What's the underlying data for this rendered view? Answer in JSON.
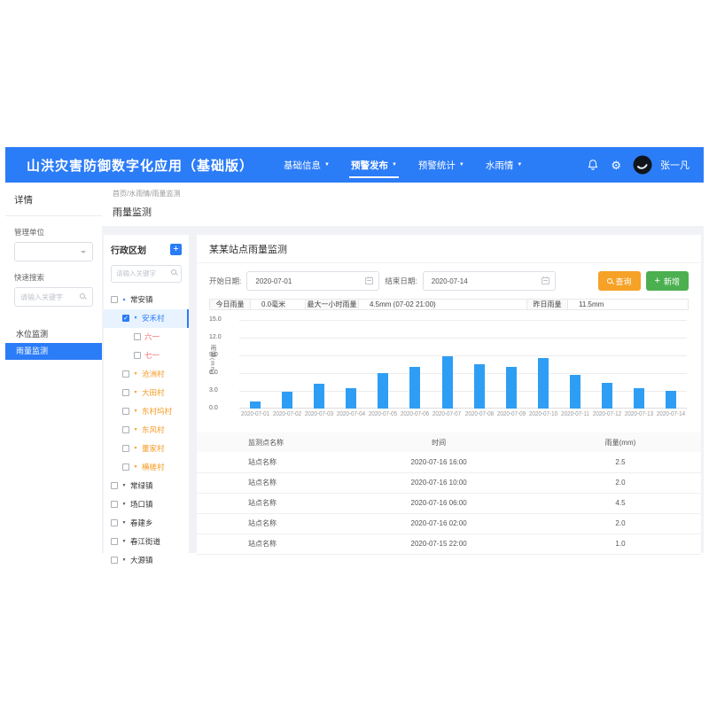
{
  "navbar": {
    "title": "山洪灾害防御数字化应用（基础版）",
    "menus": [
      {
        "label": "基础信息",
        "active": false
      },
      {
        "label": "预警发布",
        "active": true
      },
      {
        "label": "预警统计",
        "active": false
      },
      {
        "label": "水雨情",
        "active": false
      }
    ],
    "user_name": "张一凡"
  },
  "sidebar": {
    "heading": "详情",
    "org_label": "管理单位",
    "quick_search_label": "快速搜索",
    "search_placeholder": "请输入关键字",
    "items": [
      {
        "label": "水位监测",
        "active": false
      },
      {
        "label": "雨量监测",
        "active": true
      }
    ]
  },
  "page": {
    "breadcrumb": "首页/水雨情/雨量监测",
    "title": "雨量监测"
  },
  "tree_panel": {
    "title": "行政区划",
    "add_button": "+",
    "search_placeholder": "请输入关键字",
    "nodes": [
      {
        "label": "常安镇",
        "level": 0,
        "checked": false,
        "arrow": "up",
        "color": "dark",
        "selected": false
      },
      {
        "label": "安禾村",
        "level": 1,
        "checked": true,
        "arrow": "down",
        "color": "blue",
        "selected": true
      },
      {
        "label": "六一",
        "level": 2,
        "checked": false,
        "arrow": "none",
        "color": "red",
        "selected": false
      },
      {
        "label": "七一",
        "level": 2,
        "checked": false,
        "arrow": "none",
        "color": "red",
        "selected": false
      },
      {
        "label": "沧洲村",
        "level": 1,
        "checked": false,
        "arrow": "down",
        "color": "orange",
        "selected": false
      },
      {
        "label": "大田村",
        "level": 1,
        "checked": false,
        "arrow": "down",
        "color": "orange",
        "selected": false
      },
      {
        "label": "东村坞村",
        "level": 1,
        "checked": false,
        "arrow": "down",
        "color": "orange",
        "selected": false
      },
      {
        "label": "东风村",
        "level": 1,
        "checked": false,
        "arrow": "down",
        "color": "orange",
        "selected": false
      },
      {
        "label": "董家村",
        "level": 1,
        "checked": false,
        "arrow": "down",
        "color": "orange",
        "selected": false
      },
      {
        "label": "横槎村",
        "level": 1,
        "checked": false,
        "arrow": "down",
        "color": "orange",
        "selected": false
      },
      {
        "label": "常绿镇",
        "level": 0,
        "checked": false,
        "arrow": "down",
        "color": "dark",
        "selected": false
      },
      {
        "label": "场口镇",
        "level": 0,
        "checked": false,
        "arrow": "down",
        "color": "dark",
        "selected": false
      },
      {
        "label": "春建乡",
        "level": 0,
        "checked": false,
        "arrow": "down",
        "color": "dark",
        "selected": false
      },
      {
        "label": "春江街道",
        "level": 0,
        "checked": false,
        "arrow": "down",
        "color": "dark",
        "selected": false
      },
      {
        "label": "大源镇",
        "level": 0,
        "checked": false,
        "arrow": "down",
        "color": "dark",
        "selected": false
      }
    ]
  },
  "main": {
    "card_title": "某某站点雨量监测",
    "filters": {
      "start_label": "开始日期:",
      "start_value": "2020-07-01",
      "end_label": "结束日期:",
      "end_value": "2020-07-14",
      "query_label": "查询",
      "add_label": "新增"
    },
    "stats": [
      {
        "label": "今日雨量",
        "value": "0.0毫米"
      },
      {
        "label": "最大一小时雨量",
        "value": "4.5mm (07-02 21:00)"
      },
      {
        "label": "昨日雨量",
        "value": "11.5mm"
      }
    ],
    "table": {
      "headers": [
        "监测点名称",
        "时间",
        "雨量(mm)"
      ],
      "rows": [
        [
          "站点名称",
          "2020-07-16 16:00",
          "2.5"
        ],
        [
          "站点名称",
          "2020-07-16 10:00",
          "2.0"
        ],
        [
          "站点名称",
          "2020-07-16 06:00",
          "4.5"
        ],
        [
          "站点名称",
          "2020-07-16 02:00",
          "2.0"
        ],
        [
          "站点名称",
          "2020-07-15 22:00",
          "1.0"
        ]
      ]
    }
  },
  "chart_data": {
    "type": "bar",
    "categories": [
      "2020-07-01",
      "2020-07-02",
      "2020-07-03",
      "2020-07-04",
      "2020-07-05",
      "2020-07-06",
      "2020-07-07",
      "2020-07-08",
      "2020-07-09",
      "2020-07-10",
      "2020-07-11",
      "2020-07-12",
      "2020-07-13",
      "2020-07-14"
    ],
    "values": [
      1.2,
      2.8,
      4.2,
      3.5,
      6.0,
      7.1,
      8.8,
      7.5,
      7.1,
      8.5,
      5.7,
      4.3,
      3.5,
      3.0
    ],
    "title": "",
    "xlabel": "",
    "ylabel": "雨量(mm)",
    "ylim": [
      0,
      15
    ],
    "yticks": [
      0,
      3,
      6,
      9,
      12,
      15
    ],
    "grid": true,
    "legend_position": "none",
    "bar_color": "#2e9ef5"
  },
  "colors": {
    "primary_blue": "#2b7cf7",
    "bar_blue": "#2e9ef5",
    "query_orange": "#f5a227",
    "add_green": "#4cb050",
    "village_orange": "#f59a23",
    "team_red": "#f56c6c",
    "page_bg": "#f0f2f5"
  }
}
